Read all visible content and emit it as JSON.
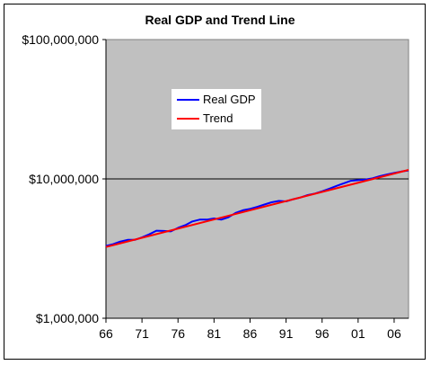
{
  "chart_data": {
    "type": "line",
    "title": "Real GDP and Trend Line",
    "y_scale": "log",
    "ylim": [
      1000000,
      100000000
    ],
    "xlim": [
      1966,
      2008
    ],
    "y_ticks": [
      {
        "value": 1000000,
        "label": "$1,000,000"
      },
      {
        "value": 10000000,
        "label": "$10,000,000"
      },
      {
        "value": 100000000,
        "label": "$100,000,000"
      }
    ],
    "x_ticks": [
      {
        "value": 1966,
        "label": "66"
      },
      {
        "value": 1971,
        "label": "71"
      },
      {
        "value": 1976,
        "label": "76"
      },
      {
        "value": 1981,
        "label": "81"
      },
      {
        "value": 1986,
        "label": "86"
      },
      {
        "value": 1991,
        "label": "91"
      },
      {
        "value": 1996,
        "label": "96"
      },
      {
        "value": 2001,
        "label": "01"
      },
      {
        "value": 2006,
        "label": "06"
      }
    ],
    "gridlines_y": [
      10000000
    ],
    "legend_position": "upper-left-inside",
    "series": [
      {
        "name": "Real GDP",
        "color": "#0000ff",
        "x": [
          1966,
          1967,
          1968,
          1969,
          1970,
          1971,
          1972,
          1973,
          1974,
          1975,
          1976,
          1977,
          1978,
          1979,
          1980,
          1981,
          1982,
          1983,
          1984,
          1985,
          1986,
          1987,
          1988,
          1989,
          1990,
          1991,
          1992,
          1993,
          1994,
          1995,
          1996,
          1997,
          1998,
          1999,
          2000,
          2001,
          2002,
          2003,
          2004,
          2005,
          2006,
          2007,
          2008
        ],
        "values": [
          3300000,
          3400000,
          3550000,
          3650000,
          3650000,
          3800000,
          4000000,
          4250000,
          4230000,
          4200000,
          4450000,
          4650000,
          4950000,
          5100000,
          5100000,
          5200000,
          5100000,
          5300000,
          5700000,
          5950000,
          6100000,
          6300000,
          6550000,
          6800000,
          6950000,
          6900000,
          7150000,
          7350000,
          7650000,
          7850000,
          8150000,
          8500000,
          8900000,
          9300000,
          9700000,
          9800000,
          9900000,
          10100000,
          10450000,
          10750000,
          11050000,
          11300000,
          11500000
        ]
      },
      {
        "name": "Trend",
        "color": "#ff0000",
        "x": [
          1966,
          2008
        ],
        "values": [
          3250000,
          11600000
        ]
      }
    ]
  }
}
